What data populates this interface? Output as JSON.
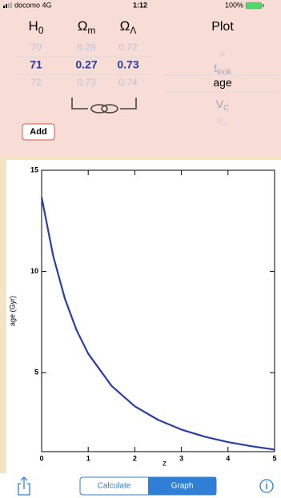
{
  "status_bar": {
    "carrier": "docomo 4G",
    "time": "1:12",
    "battery": "100%"
  },
  "parameters": {
    "columns": [
      {
        "symbol": "H",
        "subscript": "0",
        "rows": [
          70,
          71,
          72
        ]
      },
      {
        "symbol": "Ω",
        "subscript": "m",
        "rows": [
          0.26,
          0.27,
          0.73
        ]
      },
      {
        "symbol": "Ω",
        "subscript": "Λ",
        "rows": [
          0.72,
          0.73,
          0.74
        ]
      }
    ],
    "selected_row": 1
  },
  "plot_picker": {
    "title": "Plot",
    "items": [
      {
        "symbol": "μ",
        "subscript": ""
      },
      {
        "symbol": "t",
        "subscript": "look"
      },
      {
        "symbol": "age",
        "subscript": ""
      },
      {
        "symbol": "V",
        "subscript": "C"
      },
      {
        "symbol": "P",
        "subscript": "C"
      }
    ],
    "selected_item": 2
  },
  "add_button": "Add",
  "chart_data": {
    "type": "line",
    "xlabel": "z",
    "ylabel": "age (Gyr)",
    "x": [
      0,
      0.25,
      0.5,
      0.75,
      1,
      1.5,
      2,
      2.5,
      3,
      3.5,
      4,
      4.5,
      5
    ],
    "series": [
      {
        "color": "#2b3ea3",
        "values": [
          13.67,
          10.75,
          8.65,
          7.1,
          5.94,
          4.35,
          3.34,
          2.67,
          2.19,
          1.84,
          1.57,
          1.37,
          1.2
        ]
      }
    ],
    "xlim": [
      0,
      5
    ],
    "ylim": [
      1.1,
      15
    ],
    "xticks": [
      0,
      1,
      2,
      3,
      4,
      5
    ],
    "yticks": [
      5,
      10,
      15
    ]
  },
  "toolbar": {
    "segments": [
      "Calculate",
      "Graph"
    ],
    "selected_index": 1
  }
}
